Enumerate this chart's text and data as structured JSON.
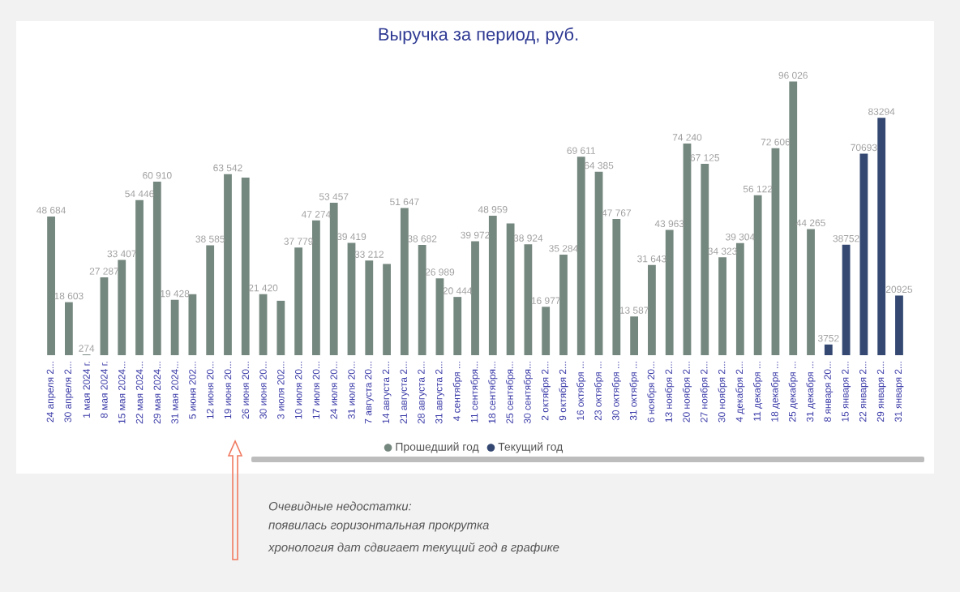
{
  "chart_data": {
    "type": "bar",
    "title": "Выручка за период, руб.",
    "categories": [
      "24 апреля 2...",
      "30 апреля 2...",
      "1 мая 2024 г.",
      "8 мая 2024 г.",
      "15 мая 2024...",
      "22 мая 2024...",
      "29 мая 2024...",
      "31 мая 2024...",
      "5 июня 202...",
      "12 июня 20...",
      "19 июня 20...",
      "26 июня 20...",
      "30 июня 20...",
      "3 июля 202...",
      "10 июля 20...",
      "17 июля 20...",
      "24 июля 20...",
      "31 июля 20...",
      "7 августа 20...",
      "14 августа 2...",
      "21 августа 2...",
      "28 августа 2...",
      "31 августа 2...",
      "4 сентября ...",
      "11 сентября...",
      "18 сентября...",
      "25 сентября...",
      "30 сентября...",
      "2 октября 2...",
      "9 октября 2...",
      "16 октября ...",
      "23 октября ...",
      "30 октября ...",
      "31 октября ...",
      "6 ноября 20...",
      "13 ноября 2...",
      "20 ноября 2...",
      "27 ноября 2...",
      "30 ноября 2...",
      "4 декабря 2...",
      "11 декабря ...",
      "18 декабря ...",
      "25 декабря ...",
      "31 декабря ...",
      "8 января 20...",
      "15 января 2...",
      "22 января 2...",
      "29 января 2...",
      "31 января 2..."
    ],
    "series": [
      {
        "name": "Прошедший год",
        "color": "#75887f",
        "values": [
          48684,
          18603,
          274,
          27287,
          33407,
          54446,
          60910,
          19428,
          21400,
          38585,
          63542,
          62300,
          21420,
          19100,
          37779,
          47274,
          53457,
          39419,
          33212,
          32000,
          51647,
          38682,
          26989,
          20444,
          39972,
          48959,
          46200,
          38924,
          16977,
          35284,
          69611,
          64385,
          47767,
          13587,
          31643,
          43963,
          74240,
          67125,
          34323,
          39304,
          56122,
          72606,
          96026,
          44265,
          null,
          null,
          null,
          null,
          null
        ],
        "value_labels": [
          "48 684",
          "18 603",
          "274",
          "27 287",
          "33 407",
          "54 446",
          "60 910",
          "19 428",
          null,
          "38 585",
          "63 542",
          null,
          "21 420",
          null,
          "37 779",
          "47 274",
          "53 457",
          "39 419",
          "33 212",
          null,
          "51 647",
          "38 682",
          "26 989",
          "20 444",
          "39 972",
          "48 959",
          null,
          "38 924",
          "16 977",
          "35 284",
          "69 611",
          "64 385",
          "47 767",
          "13 587",
          "31 643",
          "43 963",
          "74 240",
          "67 125",
          "34 323",
          "39 304",
          "56 122",
          "72 606",
          "96 026",
          "44 265",
          null,
          null,
          null,
          null,
          null
        ]
      },
      {
        "name": "Текущий год",
        "color": "#344872",
        "values": [
          null,
          null,
          null,
          null,
          null,
          null,
          null,
          null,
          null,
          null,
          null,
          null,
          null,
          null,
          null,
          null,
          null,
          null,
          null,
          null,
          null,
          null,
          null,
          null,
          null,
          null,
          null,
          null,
          null,
          null,
          null,
          null,
          null,
          null,
          null,
          null,
          null,
          null,
          null,
          null,
          null,
          null,
          null,
          null,
          3752,
          38752,
          70693,
          83294,
          20925
        ],
        "value_labels": [
          null,
          null,
          null,
          null,
          null,
          null,
          null,
          null,
          null,
          null,
          null,
          null,
          null,
          null,
          null,
          null,
          null,
          null,
          null,
          null,
          null,
          null,
          null,
          null,
          null,
          null,
          null,
          null,
          null,
          null,
          null,
          null,
          null,
          null,
          null,
          null,
          null,
          null,
          null,
          null,
          null,
          null,
          null,
          null,
          "3752",
          "38752",
          "70693",
          "83294",
          "20925"
        ]
      }
    ],
    "legend": "bottom",
    "annotations": [
      "Очевидные недостатки:",
      "появилась горизонтальная прокрутка",
      "хронология дат сдвигает текущий год в графике"
    ]
  }
}
